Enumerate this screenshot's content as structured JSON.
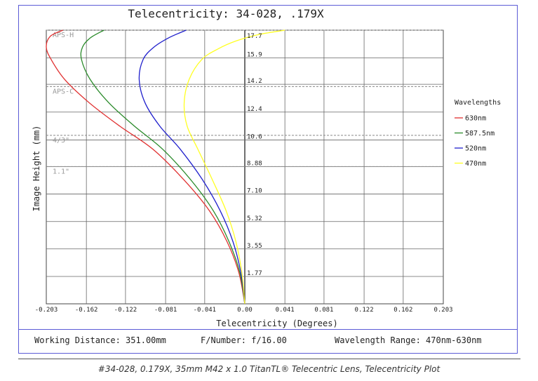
{
  "chart_data": {
    "type": "line",
    "title": "Telecentricity: 34-028, .179X",
    "xlabel": "Telecentricity (Degrees)",
    "ylabel": "Image Height (mm)",
    "xlim": [
      -0.203,
      0.203
    ],
    "ylim": [
      0,
      17.7
    ],
    "x_ticks": [
      "-0.203",
      "-0.162",
      "-0.122",
      "-0.081",
      "-0.041",
      "0.00",
      "0.041",
      "0.081",
      "0.122",
      "0.162",
      "0.203"
    ],
    "x_tick_values": [
      -0.203,
      -0.162,
      -0.122,
      -0.081,
      -0.041,
      0,
      0.041,
      0.081,
      0.122,
      0.162,
      0.203
    ],
    "y_ticks": [
      "1.77",
      "3.55",
      "5.32",
      "7.10",
      "8.88",
      "10.6",
      "12.4",
      "14.2",
      "15.9",
      "17.7"
    ],
    "y_tick_values": [
      1.77,
      3.55,
      5.32,
      7.1,
      8.88,
      10.6,
      12.4,
      14.2,
      15.9,
      17.7
    ],
    "grid": true,
    "legend_title": "Wavelengths",
    "legend_position": "right",
    "sensor_markers": [
      {
        "label": "APS-H",
        "y": 17.7
      },
      {
        "label": "APS-C",
        "y": 14.05
      },
      {
        "label": "4/3\"",
        "y": 10.9
      },
      {
        "label": "1.1\"",
        "y": 8.88
      }
    ],
    "series": [
      {
        "name": "630nm",
        "color": "#e03030",
        "x": [
          0,
          -0.006,
          -0.018,
          -0.036,
          -0.062,
          -0.094,
          -0.128,
          -0.159,
          -0.184,
          -0.198,
          -0.203,
          -0.199,
          -0.186
        ],
        "y": [
          0,
          2,
          4,
          6,
          8,
          10,
          11.5,
          13,
          14.5,
          15.8,
          16.6,
          17.3,
          17.7
        ]
      },
      {
        "name": "587.5nm",
        "color": "#2a8a2a",
        "x": [
          0,
          -0.005,
          -0.016,
          -0.032,
          -0.055,
          -0.084,
          -0.113,
          -0.139,
          -0.158,
          -0.167,
          -0.166,
          -0.158,
          -0.144
        ],
        "y": [
          0,
          2,
          4,
          6,
          8,
          10,
          11.5,
          13,
          14.5,
          15.8,
          16.6,
          17.2,
          17.7
        ]
      },
      {
        "name": "520nm",
        "color": "#2020cc",
        "x": [
          0,
          -0.004,
          -0.012,
          -0.025,
          -0.043,
          -0.066,
          -0.087,
          -0.102,
          -0.108,
          -0.104,
          -0.093,
          -0.078,
          -0.06
        ],
        "y": [
          0,
          2,
          4,
          6,
          8,
          10,
          11.5,
          13,
          14.5,
          15.8,
          16.6,
          17.2,
          17.7
        ]
      },
      {
        "name": "470nm",
        "color": "#ffff22",
        "x": [
          0,
          -0.003,
          -0.009,
          -0.019,
          -0.033,
          -0.048,
          -0.059,
          -0.062,
          -0.057,
          -0.044,
          -0.027,
          -0.009,
          0.013,
          0.041
        ],
        "y": [
          0,
          2,
          4,
          6,
          8,
          10,
          11.5,
          13,
          14.5,
          15.8,
          16.5,
          17.0,
          17.4,
          17.7
        ]
      }
    ]
  },
  "info": {
    "working_distance": "Working Distance: 351.00mm",
    "f_number": "F/Number: f/16.00",
    "wavelength_range": "Wavelength Range: 470nm-630nm"
  },
  "caption": "#34-028, 0.179X, 35mm M42 x 1.0 TitanTL® Telecentric Lens, Telecentricity Plot"
}
